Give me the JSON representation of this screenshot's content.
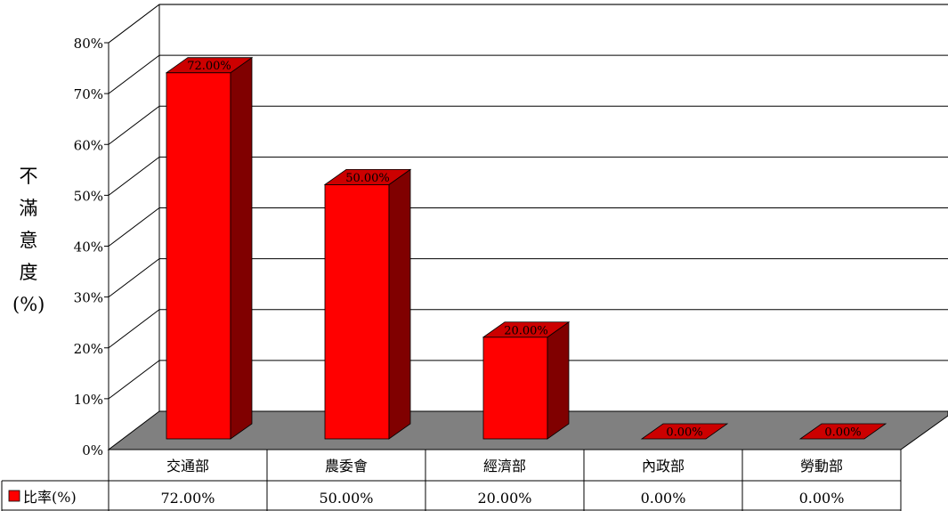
{
  "chart_data": {
    "type": "bar",
    "title": "",
    "xlabel": "",
    "ylabel": "不滿意度(%)",
    "ylabel_lines": [
      "不",
      "滿",
      "意",
      "度",
      "(%)"
    ],
    "categories": [
      "交通部",
      "農委會",
      "經濟部",
      "內政部",
      "勞動部"
    ],
    "series": [
      {
        "name": "比率(%)",
        "values": [
          72,
          50,
          20,
          0,
          0
        ],
        "labels": [
          "72.00%",
          "50.00%",
          "20.00%",
          "0.00%",
          "0.00%"
        ]
      }
    ],
    "ylim": [
      0,
      80
    ],
    "yticks": [
      "0%",
      "10%",
      "20%",
      "30%",
      "40%",
      "50%",
      "60%",
      "70%",
      "80%"
    ],
    "grid": true,
    "legend": "data-table-left",
    "colors": {
      "bar_front": "#ff0000",
      "bar_top": "#cc0000",
      "bar_side": "#800000",
      "floor": "#808080"
    }
  }
}
